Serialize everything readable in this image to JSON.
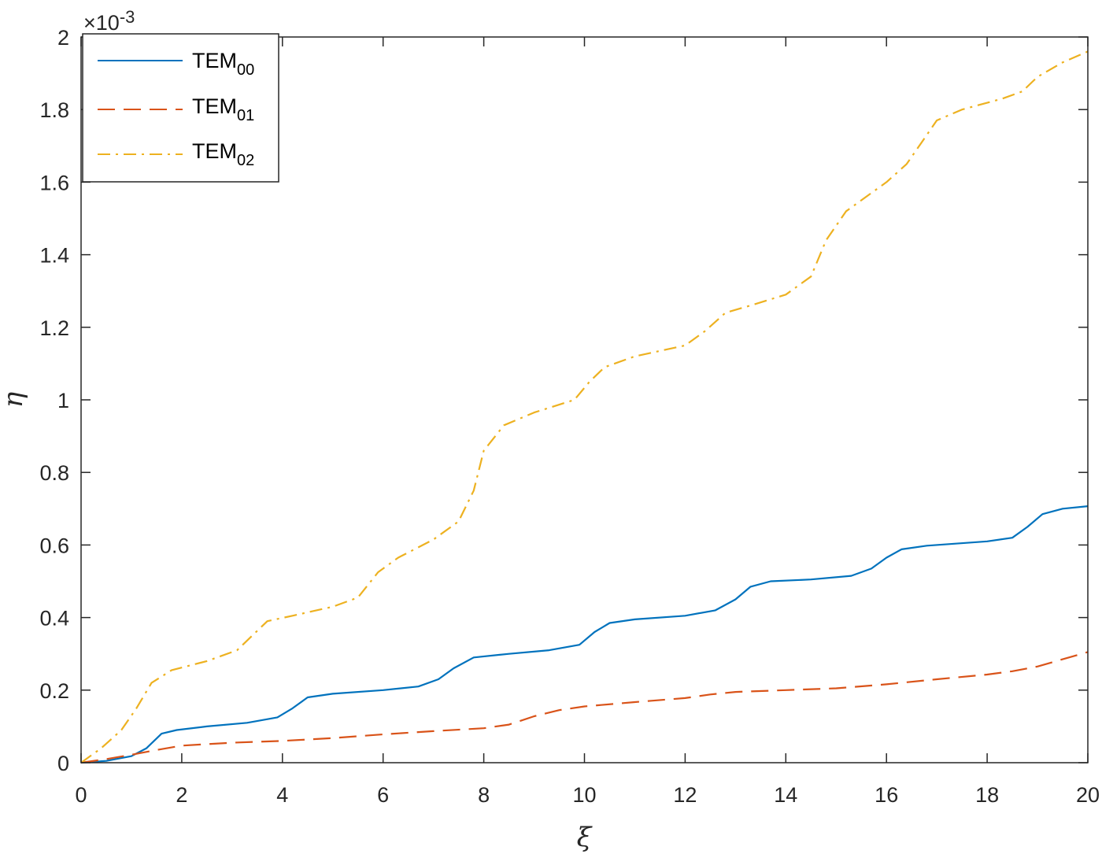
{
  "chart_data": {
    "type": "line",
    "xlabel": "ξ",
    "ylabel": "η",
    "xlim": [
      0,
      20
    ],
    "ylim": [
      0,
      0.002
    ],
    "xticks": [
      0,
      2,
      4,
      6,
      8,
      10,
      12,
      14,
      16,
      18,
      20
    ],
    "xtick_labels": [
      "0",
      "2",
      "4",
      "6",
      "8",
      "10",
      "12",
      "14",
      "16",
      "18",
      "20"
    ],
    "yticks": [
      0,
      0.0002,
      0.0004,
      0.0006,
      0.0008,
      0.001,
      0.0012,
      0.0014,
      0.0016,
      0.0018,
      0.002
    ],
    "ytick_labels": [
      "0",
      "0.2",
      "0.4",
      "0.6",
      "0.8",
      "1",
      "1.2",
      "1.4",
      "1.6",
      "1.8",
      "2"
    ],
    "y_exponent_label": "×10",
    "y_exponent_power": "-3",
    "grid": false,
    "legend_position": "top-left",
    "series": [
      {
        "name": "TEM",
        "name_sub": "00",
        "color": "#0072BD",
        "dash": "solid",
        "x": [
          0,
          0.5,
          1.0,
          1.3,
          1.6,
          1.9,
          2.5,
          3.3,
          3.9,
          4.2,
          4.5,
          5.0,
          6.0,
          6.7,
          7.1,
          7.4,
          7.8,
          8.5,
          9.3,
          9.9,
          10.2,
          10.5,
          11.0,
          12.0,
          12.6,
          13.0,
          13.3,
          13.7,
          14.5,
          15.3,
          15.7,
          16.0,
          16.3,
          16.8,
          18.0,
          18.5,
          18.8,
          19.1,
          19.5,
          20.0
        ],
        "y": [
          0,
          5e-06,
          1.8e-05,
          4e-05,
          8e-05,
          9e-05,
          0.0001,
          0.00011,
          0.000125,
          0.00015,
          0.00018,
          0.00019,
          0.0002,
          0.00021,
          0.00023,
          0.00026,
          0.00029,
          0.0003,
          0.00031,
          0.000325,
          0.00036,
          0.000385,
          0.000395,
          0.000405,
          0.00042,
          0.00045,
          0.000485,
          0.0005,
          0.000505,
          0.000515,
          0.000535,
          0.000565,
          0.000588,
          0.000598,
          0.00061,
          0.00062,
          0.00065,
          0.000685,
          0.0007,
          0.000707
        ]
      },
      {
        "name": "TEM",
        "name_sub": "01",
        "color": "#D95319",
        "dash": "dashed",
        "x": [
          0,
          0.5,
          1.0,
          1.5,
          2.0,
          3.0,
          4.0,
          5.0,
          6.0,
          7.0,
          8.0,
          8.5,
          9.0,
          9.5,
          10.0,
          11.0,
          12.0,
          12.5,
          13.0,
          14.0,
          15.0,
          16.0,
          17.0,
          18.0,
          18.5,
          19.0,
          19.5,
          20.0
        ],
        "y": [
          0,
          1e-05,
          2.2e-05,
          3.5e-05,
          4.7e-05,
          5.5e-05,
          6e-05,
          6.8e-05,
          7.8e-05,
          8.7e-05,
          9.5e-05,
          0.000105,
          0.000128,
          0.000145,
          0.000155,
          0.000167,
          0.000178,
          0.000188,
          0.000195,
          0.0002,
          0.000205,
          0.000216,
          0.00023,
          0.000243,
          0.000252,
          0.000265,
          0.000285,
          0.000305
        ]
      },
      {
        "name": "TEM",
        "name_sub": "02",
        "color": "#EDB120",
        "dash": "dashdot",
        "x": [
          0,
          0.4,
          0.8,
          1.1,
          1.4,
          1.8,
          2.5,
          3.1,
          3.4,
          3.7,
          4.2,
          5.0,
          5.5,
          5.9,
          6.3,
          7.0,
          7.5,
          7.8,
          8.0,
          8.4,
          9.0,
          9.8,
          10.1,
          10.4,
          11.0,
          12.0,
          12.4,
          12.8,
          13.3,
          14.0,
          14.5,
          14.8,
          15.2,
          16.0,
          16.4,
          16.7,
          17.0,
          17.5,
          18.3,
          18.7,
          19.0,
          19.5,
          20.0
        ],
        "y": [
          0,
          4e-05,
          9e-05,
          0.00015,
          0.00022,
          0.000255,
          0.00028,
          0.00031,
          0.00035,
          0.00039,
          0.000405,
          0.00043,
          0.000455,
          0.000525,
          0.000565,
          0.000615,
          0.000665,
          0.00075,
          0.00086,
          0.00093,
          0.000965,
          0.001,
          0.00105,
          0.00109,
          0.00112,
          0.00115,
          0.00119,
          0.00124,
          0.00126,
          0.00129,
          0.00134,
          0.00144,
          0.00152,
          0.0016,
          0.00165,
          0.00171,
          0.00177,
          0.0018,
          0.00183,
          0.00185,
          0.00189,
          0.00193,
          0.00196
        ]
      }
    ]
  }
}
